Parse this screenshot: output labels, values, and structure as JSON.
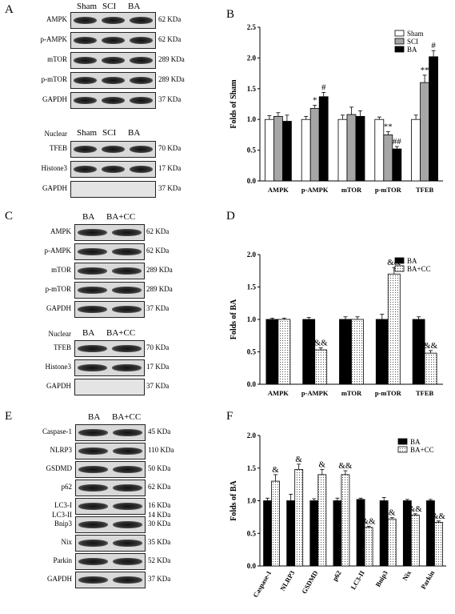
{
  "panels": {
    "A": "A",
    "B": "B",
    "C": "C",
    "D": "D",
    "E": "E",
    "F": "F"
  },
  "blots": {
    "A": {
      "header": [
        "Sham",
        "SCI",
        "BA"
      ],
      "rows": [
        {
          "label": "AMPK",
          "size": "62 KDa"
        },
        {
          "label": "p-AMPK",
          "size": "62 KDa"
        },
        {
          "label": "mTOR",
          "size": "289 KDa"
        },
        {
          "label": "p-mTOR",
          "size": "289 KDa"
        },
        {
          "label": "GAPDH",
          "size": "37 KDa"
        }
      ],
      "nuclear_label": "Nuclear",
      "nuclear_header": [
        "Sham",
        "SCI",
        "BA"
      ],
      "nuclear_rows": [
        {
          "label": "TFEB",
          "size": "70 KDa"
        },
        {
          "label": "Histone3",
          "size": "17 KDa"
        },
        {
          "label": "GAPDH",
          "size": "37 KDa"
        }
      ]
    },
    "C": {
      "header": [
        "BA",
        "BA+CC"
      ],
      "rows": [
        {
          "label": "AMPK",
          "size": "62 KDa"
        },
        {
          "label": "p-AMPK",
          "size": "62 KDa"
        },
        {
          "label": "mTOR",
          "size": "289 KDa"
        },
        {
          "label": "p-mTOR",
          "size": "289 KDa"
        },
        {
          "label": "GAPDH",
          "size": "37 KDa"
        }
      ],
      "nuclear_label": "Nuclear",
      "nuclear_header": [
        "BA",
        "BA+CC"
      ],
      "nuclear_rows": [
        {
          "label": "TFEB",
          "size": "70 KDa"
        },
        {
          "label": "Histone3",
          "size": "17 KDa"
        },
        {
          "label": "GAPDH",
          "size": "37 KDa"
        }
      ]
    },
    "E": {
      "header": [
        "BA",
        "BA+CC"
      ],
      "rows": [
        {
          "label": "Caspase-1",
          "size": "45 KDa"
        },
        {
          "label": "NLRP3",
          "size": "110 KDa"
        },
        {
          "label": "GSDMD",
          "size": "50 KDa"
        },
        {
          "label": "p62",
          "size": "62 KDa"
        },
        {
          "label": "LC3-I",
          "size": "16 KDa",
          "label2": "LC3-II",
          "size2": "14 KDa"
        },
        {
          "label": "Bnip3",
          "size": "30 KDa"
        },
        {
          "label": "Nix",
          "size": "35 KDa"
        },
        {
          "label": "Parkin",
          "size": "52 KDa"
        },
        {
          "label": "GAPDH",
          "size": "37 KDa"
        }
      ]
    }
  },
  "chart_data": [
    {
      "panel": "B",
      "type": "bar",
      "ylabel": "Folds of Sham",
      "ylim": [
        0,
        2.5
      ],
      "yticks": [
        "0.0",
        "0.5",
        "1.0",
        "1.5",
        "2.0",
        "2.5"
      ],
      "categories": [
        "AMPK",
        "p-AMPK",
        "mTOR",
        "p-mTOR",
        "TFEB"
      ],
      "series": [
        {
          "name": "Sham",
          "color": "#ffffff",
          "values": [
            1.0,
            1.0,
            1.0,
            1.0,
            1.0
          ],
          "errors": [
            0.06,
            0.05,
            0.07,
            0.04,
            0.07
          ]
        },
        {
          "name": "SCI",
          "color": "#a6a6a6",
          "values": [
            1.05,
            1.18,
            1.08,
            0.75,
            1.6
          ],
          "errors": [
            0.06,
            0.05,
            0.12,
            0.05,
            0.12
          ]
        },
        {
          "name": "BA",
          "color": "#000000",
          "values": [
            0.97,
            1.37,
            1.05,
            0.52,
            2.02
          ],
          "errors": [
            0.1,
            0.07,
            0.09,
            0.04,
            0.1
          ]
        }
      ],
      "annotations": [
        {
          "category": 1,
          "series": 1,
          "text": "*"
        },
        {
          "category": 1,
          "series": 2,
          "text": "#"
        },
        {
          "category": 3,
          "series": 1,
          "text": "**"
        },
        {
          "category": 3,
          "series": 2,
          "text": "##"
        },
        {
          "category": 4,
          "series": 1,
          "text": "**"
        },
        {
          "category": 4,
          "series": 2,
          "text": "#"
        }
      ],
      "legend": "top-right"
    },
    {
      "panel": "D",
      "type": "bar",
      "ylabel": "Folds of BA",
      "ylim": [
        0,
        2.0
      ],
      "yticks": [
        "0.0",
        "0.5",
        "1.0",
        "1.5",
        "2.0"
      ],
      "categories": [
        "AMPK",
        "p-AMPK",
        "mTOR",
        "p-mTOR",
        "TFEB"
      ],
      "series": [
        {
          "name": "BA",
          "color": "#000000",
          "values": [
            1.0,
            1.0,
            1.0,
            1.0,
            1.0
          ],
          "errors": [
            0.02,
            0.03,
            0.04,
            0.08,
            0.04
          ]
        },
        {
          "name": "BA+CC",
          "color": "#ffffff",
          "pattern": true,
          "values": [
            1.0,
            0.53,
            1.0,
            1.7,
            0.48
          ],
          "errors": [
            0.02,
            0.03,
            0.04,
            0.1,
            0.04
          ]
        }
      ],
      "annotations": [
        {
          "category": 1,
          "series": 1,
          "text": "&&"
        },
        {
          "category": 3,
          "series": 1,
          "text": "&&"
        },
        {
          "category": 4,
          "series": 1,
          "text": "&&"
        }
      ],
      "legend": "top-right"
    },
    {
      "panel": "F",
      "type": "bar",
      "ylabel": "Folds of BA",
      "ylim": [
        0,
        2.0
      ],
      "yticks": [
        "0.0",
        "0.5",
        "1.0",
        "1.5",
        "2.0"
      ],
      "categories": [
        "Caspase-1",
        "NLRP3",
        "GSDMD",
        "p62",
        "LC3-II",
        "Bnip3",
        "Nix",
        "Parkin"
      ],
      "series": [
        {
          "name": "BA",
          "color": "#000000",
          "values": [
            1.0,
            1.0,
            1.0,
            1.0,
            1.02,
            1.0,
            1.0,
            1.0
          ],
          "errors": [
            0.04,
            0.1,
            0.03,
            0.04,
            0.02,
            0.05,
            0.02,
            0.02
          ]
        },
        {
          "name": "BA+CC",
          "color": "#ffffff",
          "pattern": true,
          "values": [
            1.3,
            1.48,
            1.4,
            1.4,
            0.59,
            0.72,
            0.78,
            0.67
          ],
          "errors": [
            0.1,
            0.08,
            0.08,
            0.06,
            0.02,
            0.02,
            0.02,
            0.02
          ]
        }
      ],
      "annotations": [
        {
          "category": 0,
          "series": 1,
          "text": "&"
        },
        {
          "category": 1,
          "series": 1,
          "text": "&"
        },
        {
          "category": 2,
          "series": 1,
          "text": "&"
        },
        {
          "category": 3,
          "series": 1,
          "text": "&&"
        },
        {
          "category": 4,
          "series": 1,
          "text": "&&"
        },
        {
          "category": 5,
          "series": 1,
          "text": "&"
        },
        {
          "category": 6,
          "series": 1,
          "text": "&&"
        },
        {
          "category": 7,
          "series": 1,
          "text": "&&"
        }
      ],
      "legend": "top-right"
    }
  ]
}
